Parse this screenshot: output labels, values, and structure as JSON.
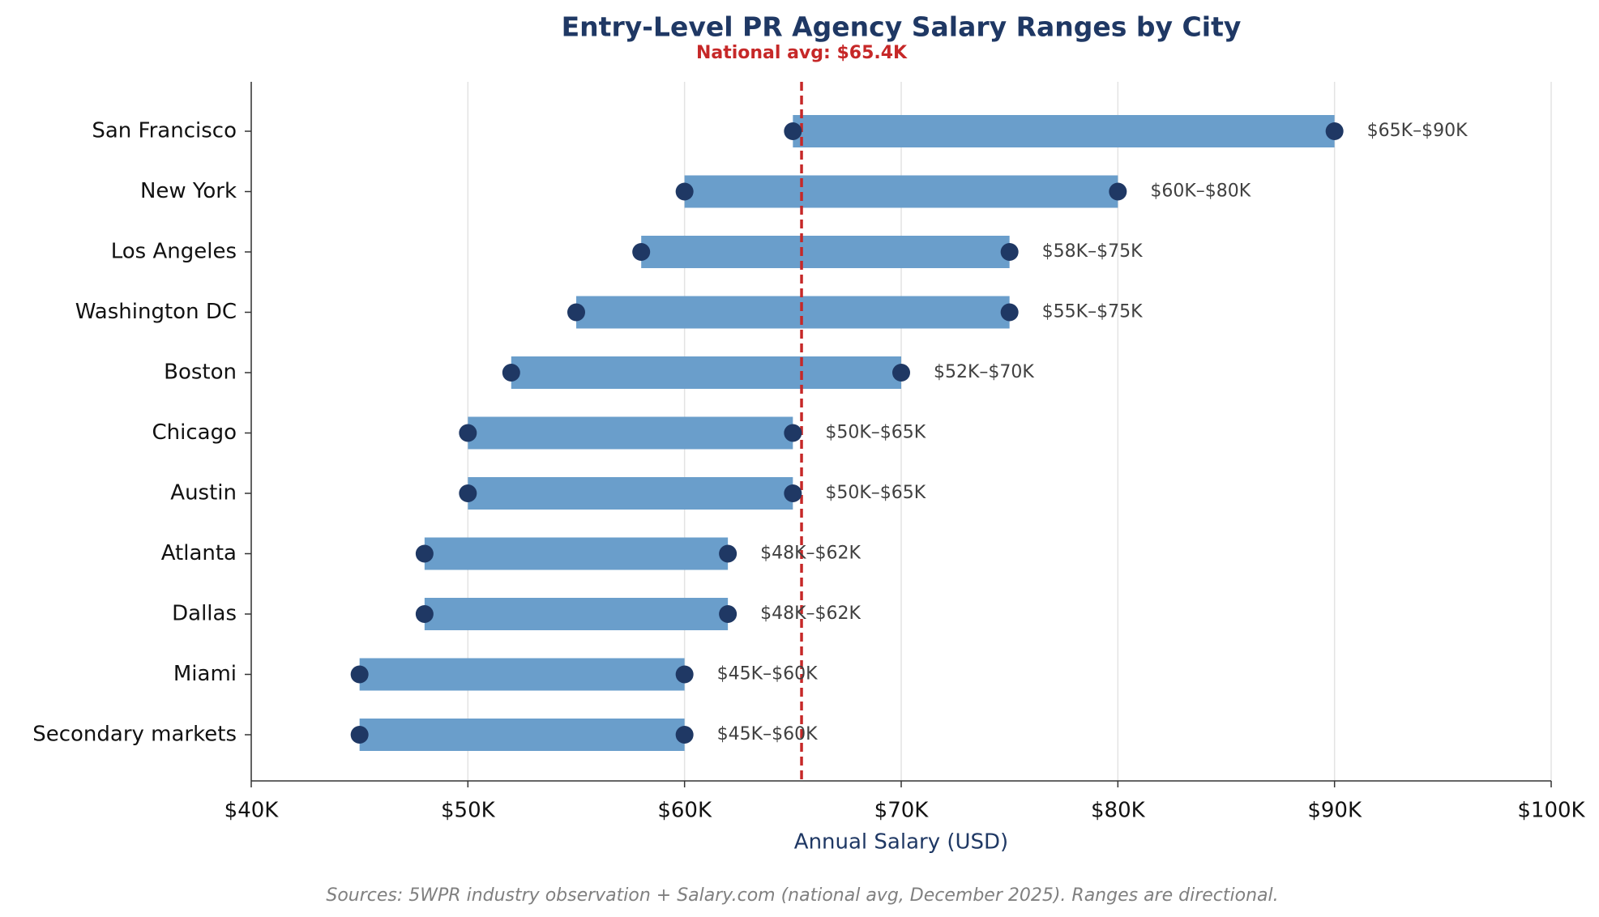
{
  "chart_data": {
    "type": "range_bar",
    "title": "Entry-Level PR Agency Salary Ranges by City",
    "x_label": "Annual Salary (USD)",
    "source": "Sources: 5WPR industry observation + Salary.com (national avg, December 2025). Ranges are directional.",
    "categories": [
      "San Francisco",
      "New York",
      "Los Angeles",
      "Washington DC",
      "Boston",
      "Chicago",
      "Austin",
      "Atlanta",
      "Dallas",
      "Miami",
      "Secondary markets"
    ],
    "low": [
      65000,
      60000,
      58000,
      55000,
      52000,
      50000,
      50000,
      48000,
      48000,
      45000,
      45000
    ],
    "high": [
      90000,
      80000,
      75000,
      75000,
      70000,
      65000,
      65000,
      62000,
      62000,
      60000,
      60000
    ],
    "value_labels": [
      "$65K–$90K",
      "$60K–$80K",
      "$58K–$75K",
      "$55K–$75K",
      "$52K–$70K",
      "$50K–$65K",
      "$50K–$65K",
      "$48K–$62K",
      "$48K–$62K",
      "$45K–$60K",
      "$45K–$60K"
    ],
    "bar_color": "#6a9ecb",
    "point_color": "#1f3864",
    "reference_line": {
      "value": 65400,
      "label": "National avg: $65.4K",
      "color": "#c62828"
    },
    "xlim": [
      40000,
      100000
    ],
    "xticks": [
      {
        "value": 40000,
        "label": "$40K"
      },
      {
        "value": 50000,
        "label": "$50K"
      },
      {
        "value": 60000,
        "label": "$60K"
      },
      {
        "value": 70000,
        "label": "$70K"
      },
      {
        "value": 80000,
        "label": "$80K"
      },
      {
        "value": 90000,
        "label": "$90K"
      },
      {
        "value": 100000,
        "label": "$100K"
      }
    ],
    "grid": true
  }
}
